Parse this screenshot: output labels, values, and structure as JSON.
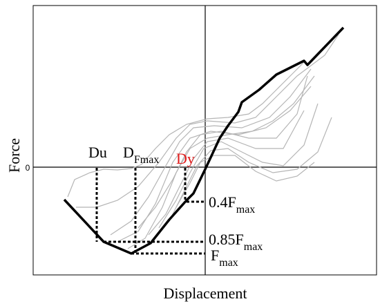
{
  "axes": {
    "y_label": "Force",
    "x_label": "Displacement",
    "origin": "0"
  },
  "labels": {
    "du": "Du",
    "d_fmax": {
      "main": "D",
      "sub": "Fmax"
    },
    "dy": "Dy",
    "f_04": {
      "main": "0.4F",
      "sub": "max"
    },
    "f_085": {
      "main": "0.85F",
      "sub": "max"
    },
    "f_max": {
      "main": "F",
      "sub": "max"
    }
  }
}
